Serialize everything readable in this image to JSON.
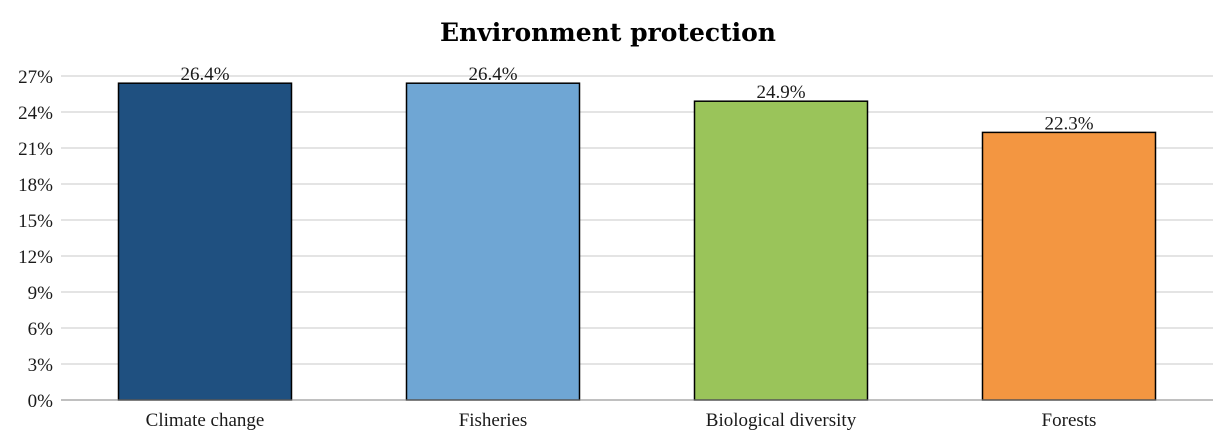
{
  "chart_data": {
    "type": "bar",
    "title": "Environment protection",
    "xlabel": "",
    "ylabel": "",
    "categories": [
      "Climate change",
      "Fisheries",
      "Biological diversity",
      "Forests"
    ],
    "values": [
      26.4,
      26.4,
      24.9,
      22.3
    ],
    "value_labels": [
      "26.4%",
      "26.4%",
      "24.9%",
      "22.3%"
    ],
    "ylim": [
      0,
      27
    ],
    "yticks": [
      0,
      3,
      6,
      9,
      12,
      15,
      18,
      21,
      24,
      27
    ],
    "ytick_labels": [
      "0%",
      "3%",
      "6%",
      "9%",
      "12%",
      "15%",
      "18%",
      "21%",
      "24%",
      "27%"
    ],
    "bar_colors": [
      "#1f5080",
      "#6fa6d4",
      "#9ac45a",
      "#f39641"
    ],
    "grid": true,
    "legend": false
  }
}
